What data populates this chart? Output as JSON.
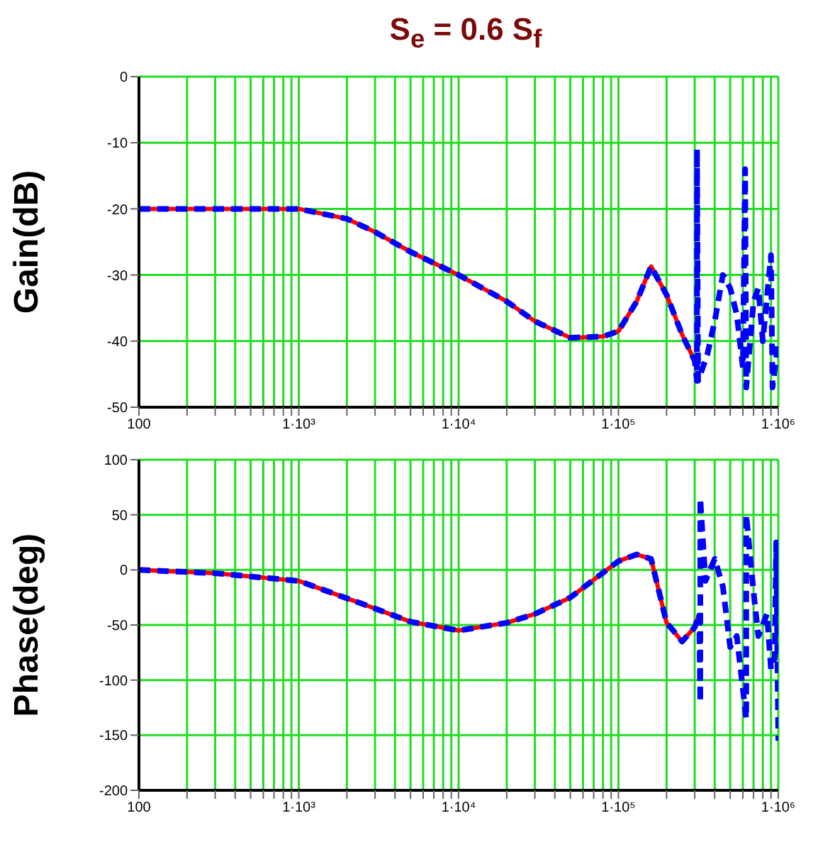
{
  "chart_data": [
    {
      "type": "line",
      "title": "S$_{e}$ = 0.6 S$_{f}$",
      "ylabel": "Gain(dB)",
      "log": "x",
      "grid": true,
      "xlim": [
        100,
        1000000
      ],
      "ylim": [
        -50,
        0
      ],
      "yticks": [
        0,
        -10,
        -20,
        -30,
        -40,
        -50
      ],
      "xticks": [
        100,
        {
          "value": 200,
          "label": null
        },
        {
          "value": 300,
          "label": null
        },
        {
          "value": 400,
          "label": null
        },
        {
          "value": 500,
          "label": null
        },
        {
          "value": 600,
          "label": null
        },
        {
          "value": 700,
          "label": null
        },
        {
          "value": 800,
          "label": null
        },
        {
          "value": 900,
          "label": null
        },
        {
          "value": 1000,
          "label": "1·10³"
        },
        {
          "value": 2000,
          "label": null
        },
        {
          "value": 3000,
          "label": null
        },
        {
          "value": 4000,
          "label": null
        },
        {
          "value": 5000,
          "label": null
        },
        {
          "value": 6000,
          "label": null
        },
        {
          "value": 7000,
          "label": null
        },
        {
          "value": 8000,
          "label": null
        },
        {
          "value": 9000,
          "label": null
        },
        {
          "value": 10000,
          "label": "1·10⁴"
        },
        {
          "value": 20000,
          "label": null
        },
        {
          "value": 30000,
          "label": null
        },
        {
          "value": 40000,
          "label": null
        },
        {
          "value": 50000,
          "label": null
        },
        {
          "value": 60000,
          "label": null
        },
        {
          "value": 70000,
          "label": null
        },
        {
          "value": 80000,
          "label": null
        },
        {
          "value": 90000,
          "label": null
        },
        {
          "value": 100000,
          "label": "1·10⁵"
        },
        {
          "value": 200000,
          "label": null
        },
        {
          "value": 300000,
          "label": null
        },
        {
          "value": 400000,
          "label": null
        },
        {
          "value": 500000,
          "label": null
        },
        {
          "value": 600000,
          "label": null
        },
        {
          "value": 700000,
          "label": null
        },
        {
          "value": 800000,
          "label": null
        },
        {
          "value": 900000,
          "label": null
        },
        {
          "value": 1000000,
          "label": "1·10⁶"
        }
      ],
      "series": [
        {
          "color": "#ff0000",
          "line_style": "solid",
          "x": [
            100,
            300,
            1000,
            2000,
            3000,
            5000,
            10000,
            20000,
            30000,
            50000,
            80000,
            100000,
            130000,
            160000,
            200000,
            250000,
            300000
          ],
          "values": [
            -20,
            -20,
            -20,
            -21.5,
            -23.5,
            -26.5,
            -30,
            -34,
            -37,
            -39.5,
            -39.3,
            -38.5,
            -34,
            -28.7,
            -33,
            -39,
            -43
          ]
        },
        {
          "color": "#0000ff",
          "line_style": "dashed",
          "x": [
            100,
            300,
            1000,
            2000,
            3000,
            5000,
            10000,
            20000,
            30000,
            50000,
            80000,
            100000,
            130000,
            160000,
            200000,
            250000,
            300000,
            310000,
            310000,
            315000,
            360000,
            400000,
            450000,
            500000,
            550000,
            600000,
            620000,
            630000,
            700000,
            750000,
            800000,
            900000,
            920000,
            1000000
          ],
          "values": [
            -20,
            -20,
            -20,
            -21.5,
            -23.5,
            -26.5,
            -30,
            -34,
            -37,
            -39.5,
            -39.3,
            -38.5,
            -34,
            -28.7,
            -33,
            -39,
            -43,
            -46,
            -11,
            -46,
            -42,
            -37,
            -30,
            -32,
            -36,
            -44,
            -14,
            -47,
            -34,
            -32,
            -40,
            -27,
            -47,
            -40
          ]
        }
      ]
    },
    {
      "type": "line",
      "ylabel": "Phase(deg)",
      "log": "x",
      "grid": true,
      "xlim": [
        100,
        1000000
      ],
      "ylim": [
        -200,
        100
      ],
      "yticks": [
        100,
        50,
        0,
        -50,
        -100,
        -150,
        -200
      ],
      "xticks": [
        100,
        {
          "value": 200,
          "label": null
        },
        {
          "value": 300,
          "label": null
        },
        {
          "value": 400,
          "label": null
        },
        {
          "value": 500,
          "label": null
        },
        {
          "value": 600,
          "label": null
        },
        {
          "value": 700,
          "label": null
        },
        {
          "value": 800,
          "label": null
        },
        {
          "value": 900,
          "label": null
        },
        {
          "value": 1000,
          "label": "1·10³"
        },
        {
          "value": 2000,
          "label": null
        },
        {
          "value": 3000,
          "label": null
        },
        {
          "value": 4000,
          "label": null
        },
        {
          "value": 5000,
          "label": null
        },
        {
          "value": 6000,
          "label": null
        },
        {
          "value": 7000,
          "label": null
        },
        {
          "value": 8000,
          "label": null
        },
        {
          "value": 9000,
          "label": null
        },
        {
          "value": 10000,
          "label": "1·10⁴"
        },
        {
          "value": 20000,
          "label": null
        },
        {
          "value": 30000,
          "label": null
        },
        {
          "value": 40000,
          "label": null
        },
        {
          "value": 50000,
          "label": null
        },
        {
          "value": 60000,
          "label": null
        },
        {
          "value": 70000,
          "label": null
        },
        {
          "value": 80000,
          "label": null
        },
        {
          "value": 90000,
          "label": null
        },
        {
          "value": 100000,
          "label": "1·10⁵"
        },
        {
          "value": 200000,
          "label": null
        },
        {
          "value": 300000,
          "label": null
        },
        {
          "value": 400000,
          "label": null
        },
        {
          "value": 500000,
          "label": null
        },
        {
          "value": 600000,
          "label": null
        },
        {
          "value": 700000,
          "label": null
        },
        {
          "value": 800000,
          "label": null
        },
        {
          "value": 900000,
          "label": null
        },
        {
          "value": 1000000,
          "label": "1·10⁶"
        }
      ],
      "series": [
        {
          "color": "#ff0000",
          "line_style": "solid",
          "x": [
            100,
            300,
            1000,
            3000,
            5000,
            10000,
            20000,
            30000,
            50000,
            100000,
            130000,
            160000,
            200000,
            220000,
            250000,
            300000,
            320000
          ],
          "values": [
            0,
            -3,
            -10,
            -35,
            -47,
            -55,
            -48,
            -40,
            -25,
            8,
            14,
            10,
            -48,
            -55,
            -65,
            -52,
            -40
          ]
        },
        {
          "color": "#0000ff",
          "line_style": "dashed",
          "x": [
            100,
            300,
            1000,
            3000,
            5000,
            10000,
            20000,
            30000,
            50000,
            100000,
            130000,
            160000,
            200000,
            220000,
            250000,
            300000,
            320000,
            325000,
            325000,
            350000,
            400000,
            450000,
            500000,
            550000,
            630000,
            630000,
            700000,
            750000,
            850000,
            900000,
            950000,
            970000,
            1000000
          ],
          "values": [
            0,
            -3,
            -10,
            -35,
            -47,
            -55,
            -48,
            -40,
            -25,
            8,
            14,
            10,
            -48,
            -55,
            -65,
            -52,
            -40,
            -120,
            65,
            -10,
            10,
            -15,
            -70,
            -60,
            -135,
            50,
            -20,
            -60,
            -40,
            -90,
            -80,
            25,
            -155
          ]
        }
      ]
    }
  ]
}
